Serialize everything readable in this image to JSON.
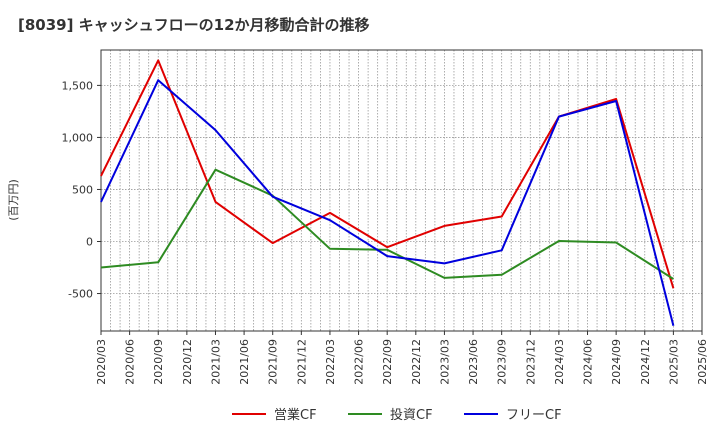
{
  "chart_data": {
    "type": "line",
    "title": "[8039]  キャッシュフローの12か月移動合計の推移",
    "ylabel": "(百万円)",
    "xlabel": "",
    "ylim": [
      -860,
      1840
    ],
    "yticks": [
      -500,
      0,
      500,
      1000,
      1500
    ],
    "ytick_labels": [
      "-500",
      "0",
      "500",
      "1,000",
      "1,500"
    ],
    "x_tick_labels": [
      "2020/03",
      "2020/06",
      "2020/09",
      "2020/12",
      "2021/03",
      "2021/06",
      "2021/09",
      "2021/12",
      "2022/03",
      "2022/06",
      "2022/09",
      "2022/12",
      "2023/03",
      "2023/06",
      "2023/09",
      "2023/12",
      "2024/03",
      "2024/06",
      "2024/09",
      "2024/12",
      "2025/03",
      "2025/06"
    ],
    "grid": true,
    "legend_position": "bottom",
    "series": [
      {
        "name": "営業CF",
        "color": "#e00000",
        "points": [
          {
            "x": "2020/03",
            "y": 630
          },
          {
            "x": "2020/09",
            "y": 1740
          },
          {
            "x": "2021/03",
            "y": 380
          },
          {
            "x": "2021/09",
            "y": -15
          },
          {
            "x": "2022/03",
            "y": 275
          },
          {
            "x": "2022/09",
            "y": -55
          },
          {
            "x": "2023/03",
            "y": 150
          },
          {
            "x": "2023/09",
            "y": 240
          },
          {
            "x": "2024/03",
            "y": 1200
          },
          {
            "x": "2024/09",
            "y": 1370
          },
          {
            "x": "2025/03",
            "y": -450
          }
        ]
      },
      {
        "name": "投資CF",
        "color": "#2e8b22",
        "points": [
          {
            "x": "2020/03",
            "y": -250
          },
          {
            "x": "2020/09",
            "y": -200
          },
          {
            "x": "2021/03",
            "y": 690
          },
          {
            "x": "2021/09",
            "y": 440
          },
          {
            "x": "2022/03",
            "y": -70
          },
          {
            "x": "2022/09",
            "y": -80
          },
          {
            "x": "2023/03",
            "y": -350
          },
          {
            "x": "2023/09",
            "y": -320
          },
          {
            "x": "2024/03",
            "y": 5
          },
          {
            "x": "2024/09",
            "y": -10
          },
          {
            "x": "2025/03",
            "y": -360
          }
        ]
      },
      {
        "name": "フリーCF",
        "color": "#0000dd",
        "points": [
          {
            "x": "2020/03",
            "y": 380
          },
          {
            "x": "2020/09",
            "y": 1550
          },
          {
            "x": "2021/03",
            "y": 1070
          },
          {
            "x": "2021/09",
            "y": 430
          },
          {
            "x": "2022/03",
            "y": 205
          },
          {
            "x": "2022/09",
            "y": -140
          },
          {
            "x": "2023/03",
            "y": -210
          },
          {
            "x": "2023/09",
            "y": -85
          },
          {
            "x": "2024/03",
            "y": 1200
          },
          {
            "x": "2024/09",
            "y": 1350
          },
          {
            "x": "2025/03",
            "y": -810
          }
        ]
      }
    ]
  }
}
